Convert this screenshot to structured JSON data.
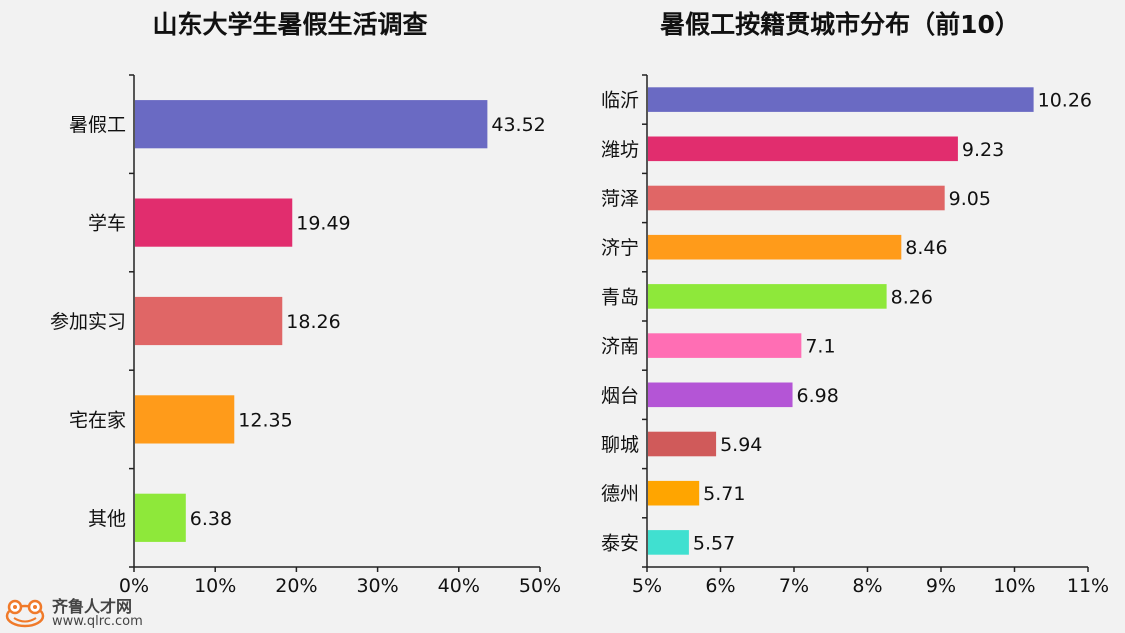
{
  "chart_data": [
    {
      "type": "bar",
      "orientation": "horizontal",
      "title": "山东大学生暑假生活调查",
      "categories": [
        "暑假工",
        "学车",
        "参加实习",
        "宅在家",
        "其他"
      ],
      "values": [
        43.52,
        19.49,
        18.26,
        12.35,
        6.38
      ],
      "colors": [
        "#6a6ac3",
        "#e12d6e",
        "#e06666",
        "#ff9b1a",
        "#8ee83a"
      ],
      "xlim": [
        0,
        50
      ],
      "xticks": [
        "0%",
        "10%",
        "20%",
        "30%",
        "40%",
        "50%"
      ],
      "grid": false
    },
    {
      "type": "bar",
      "orientation": "horizontal",
      "title": "暑假工按籍贯城市分布（前10）",
      "categories": [
        "临沂",
        "潍坊",
        "菏泽",
        "济宁",
        "青岛",
        "济南",
        "烟台",
        "聊城",
        "德州",
        "泰安"
      ],
      "values": [
        10.26,
        9.23,
        9.05,
        8.46,
        8.26,
        7.1,
        6.98,
        5.94,
        5.71,
        5.57
      ],
      "colors": [
        "#6a6ac3",
        "#e12d6e",
        "#e06666",
        "#ff9b1a",
        "#8ee83a",
        "#ff6eb4",
        "#b455d6",
        "#d05a5a",
        "#ffa500",
        "#40e0d0"
      ],
      "xlim": [
        5,
        11
      ],
      "xticks": [
        "5%",
        "6%",
        "7%",
        "8%",
        "9%",
        "10%",
        "11%"
      ],
      "grid": false
    }
  ],
  "watermark": {
    "name": "齐鲁人才网",
    "url": "www.qlrc.com"
  }
}
